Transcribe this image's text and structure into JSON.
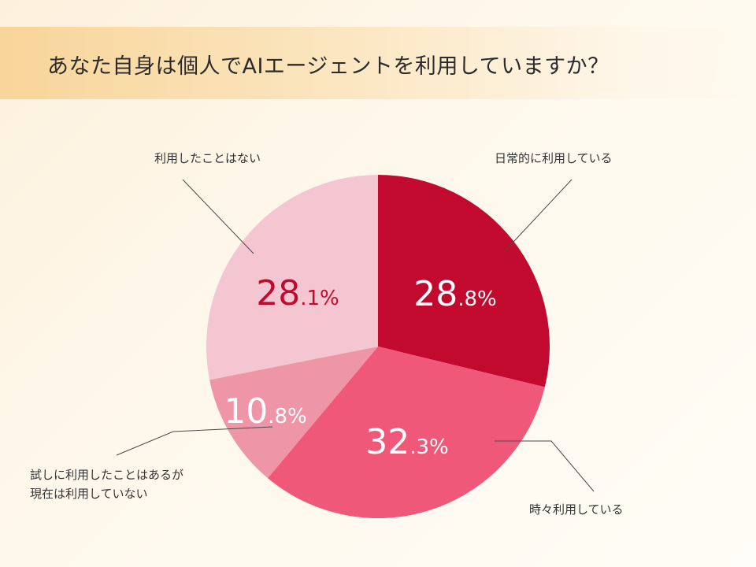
{
  "title": "あなた自身は個人でAIエージェントを利用していますか？",
  "chart_data": {
    "type": "pie",
    "title": "あなた自身は個人でAIエージェントを利用していますか？",
    "start_angle_deg": 0,
    "direction": "clockwise",
    "slices": [
      {
        "label_lines": [
          "日常的に利用している"
        ],
        "value": 28.8,
        "pct_int": "28",
        "pct_dec": ".8",
        "pct_sign": "%",
        "color": "#c20a2f",
        "text_color": "#ffffff"
      },
      {
        "label_lines": [
          "時々利用している"
        ],
        "value": 32.3,
        "pct_int": "32",
        "pct_dec": ".3",
        "pct_sign": "%",
        "color": "#f0587a",
        "text_color": "#ffffff"
      },
      {
        "label_lines": [
          "試しに利用したことはあるが",
          "現在は利用していない"
        ],
        "value": 10.8,
        "pct_int": "10",
        "pct_dec": ".8",
        "pct_sign": "%",
        "color": "#ee96a8",
        "text_color": "#ffffff"
      },
      {
        "label_lines": [
          "利用したことはない"
        ],
        "value": 28.1,
        "pct_int": "28",
        "pct_dec": ".1",
        "pct_sign": "%",
        "color": "#f4c6d1",
        "text_color": "#c20a2f"
      }
    ]
  }
}
